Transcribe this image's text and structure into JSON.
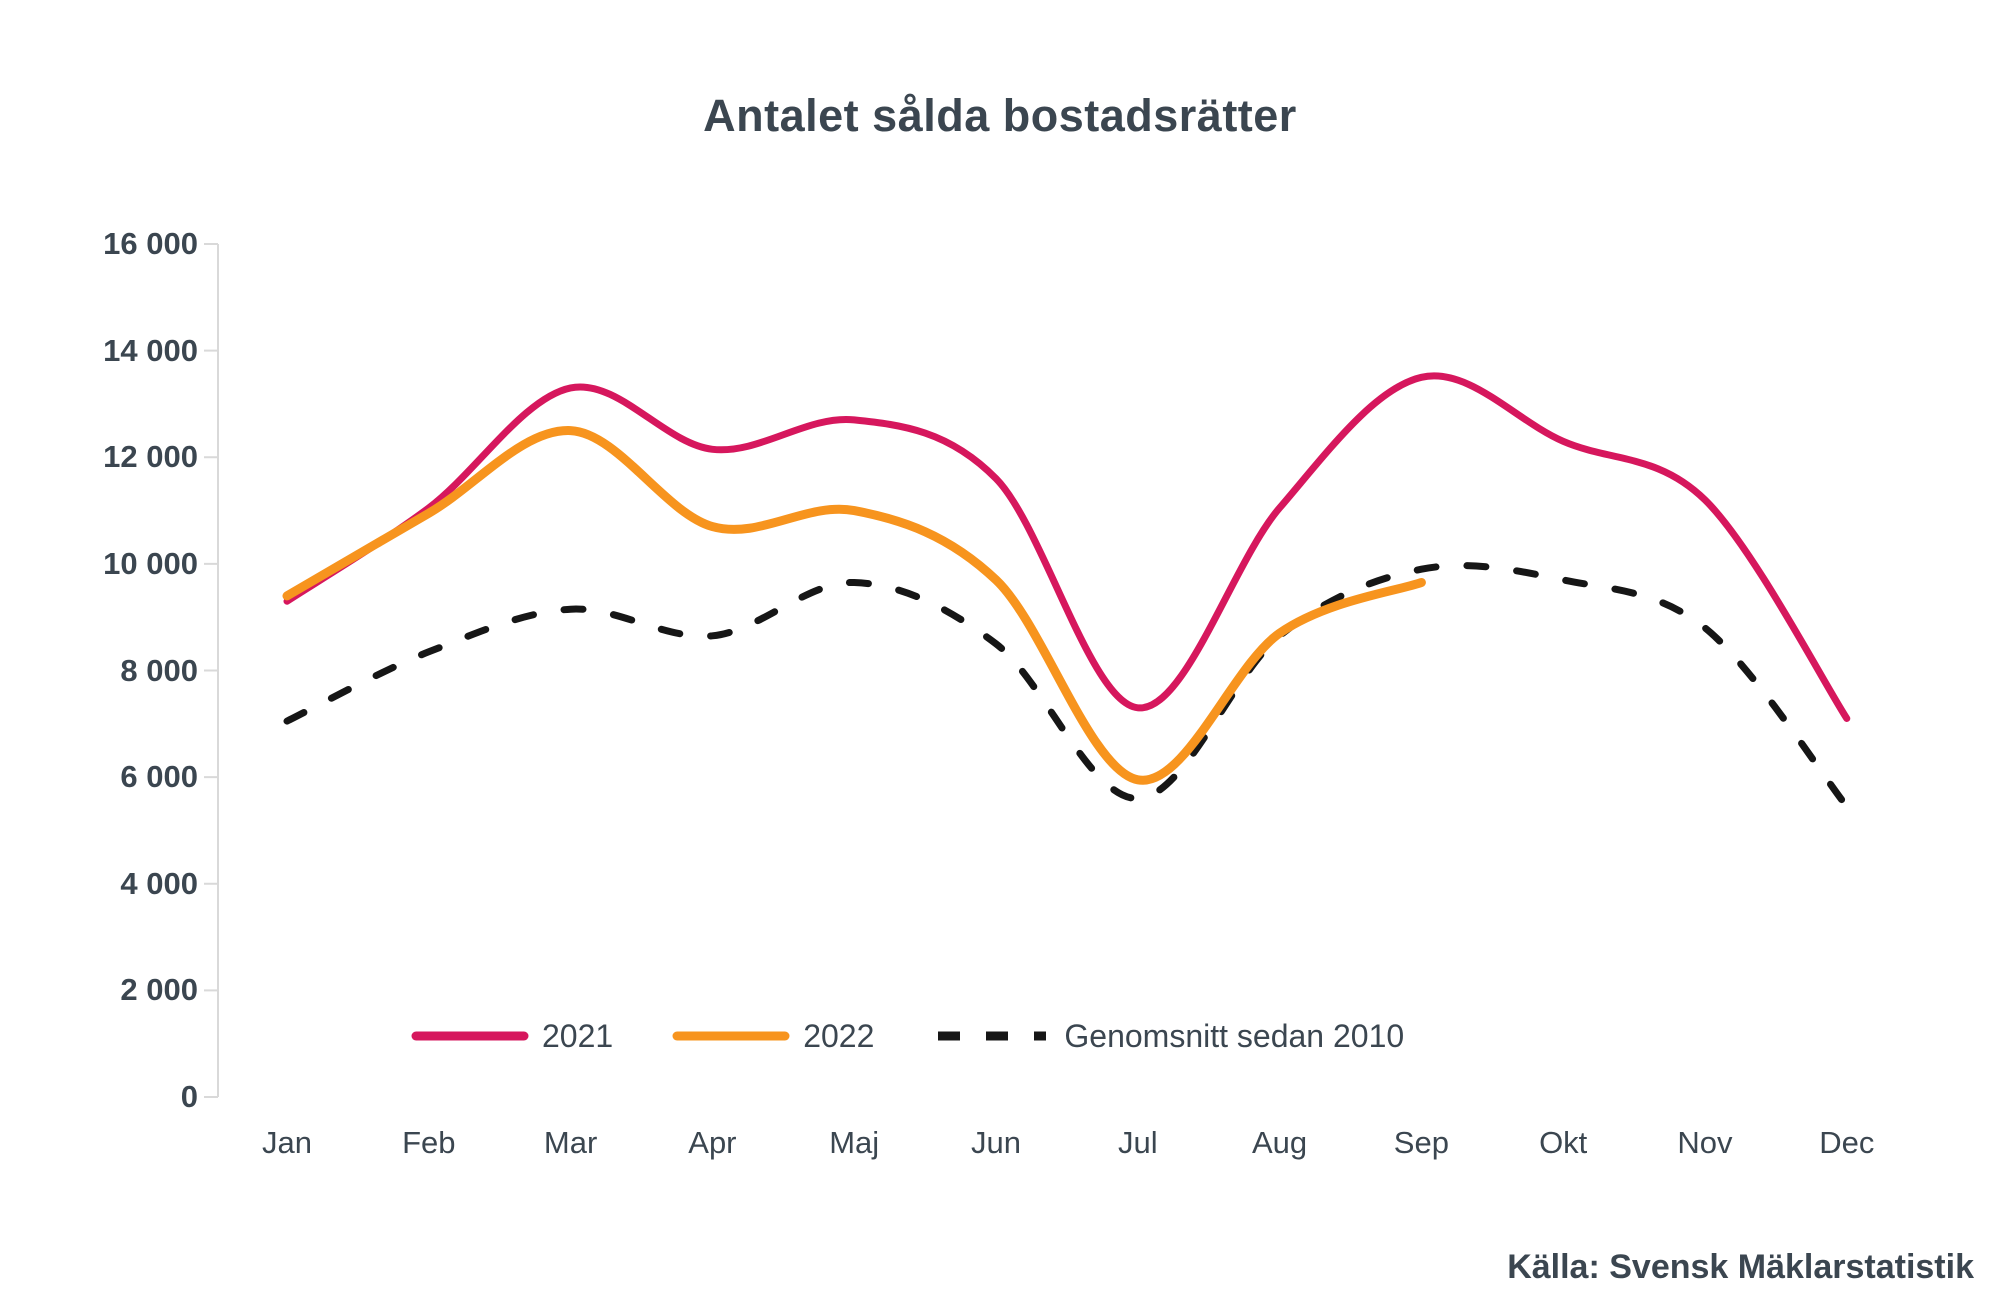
{
  "title": "Antalet sålda bostadsrätter",
  "source": "Källa: Svensk Mäklarstatistik",
  "colors": {
    "series_2021": "#d6175d",
    "series_2022": "#f7941e",
    "series_average": "#161616",
    "text": "#3b4650",
    "axis": "#d9d9d9",
    "background": "#ffffff"
  },
  "legend": [
    {
      "label": "2021",
      "color": "#d6175d",
      "dashed": false
    },
    {
      "label": "2022",
      "color": "#f7941e",
      "dashed": false
    },
    {
      "label": "Genomsnitt sedan 2010",
      "color": "#161616",
      "dashed": true
    }
  ],
  "y_axis": {
    "labels": [
      "0",
      "2 000",
      "4 000",
      "6 000",
      "8 000",
      "10 000",
      "12 000",
      "14 000",
      "16 000"
    ],
    "values": [
      0,
      2000,
      4000,
      6000,
      8000,
      10000,
      12000,
      14000,
      16000
    ]
  },
  "chart_data": {
    "type": "line",
    "title": "Antalet sålda bostadsrätter",
    "categories": [
      "Jan",
      "Feb",
      "Mar",
      "Apr",
      "Maj",
      "Jun",
      "Jul",
      "Aug",
      "Sep",
      "Okt",
      "Nov",
      "Dec"
    ],
    "series": [
      {
        "name": "2021",
        "color": "#d6175d",
        "dashed": false,
        "stroke_width": 7,
        "values": [
          9300,
          11050,
          13300,
          12150,
          12700,
          11600,
          7300,
          11050,
          13500,
          12300,
          11200,
          7100
        ]
      },
      {
        "name": "2022",
        "color": "#f7941e",
        "dashed": false,
        "stroke_width": 9,
        "values": [
          9400,
          10950,
          12500,
          10700,
          11000,
          9700,
          5950,
          8700,
          9650,
          null,
          null,
          null
        ]
      },
      {
        "name": "Genomsnitt sedan 2010",
        "color": "#161616",
        "dashed": true,
        "stroke_width": 7,
        "values": [
          7050,
          8350,
          9150,
          8650,
          9650,
          8500,
          5600,
          8650,
          9900,
          9700,
          8800,
          5450
        ]
      }
    ],
    "xlabel": "",
    "ylabel": "",
    "ylim": [
      0,
      16000
    ],
    "grid": false,
    "legend_position": "bottom",
    "source": "Källa: Svensk Mäklarstatistik"
  }
}
